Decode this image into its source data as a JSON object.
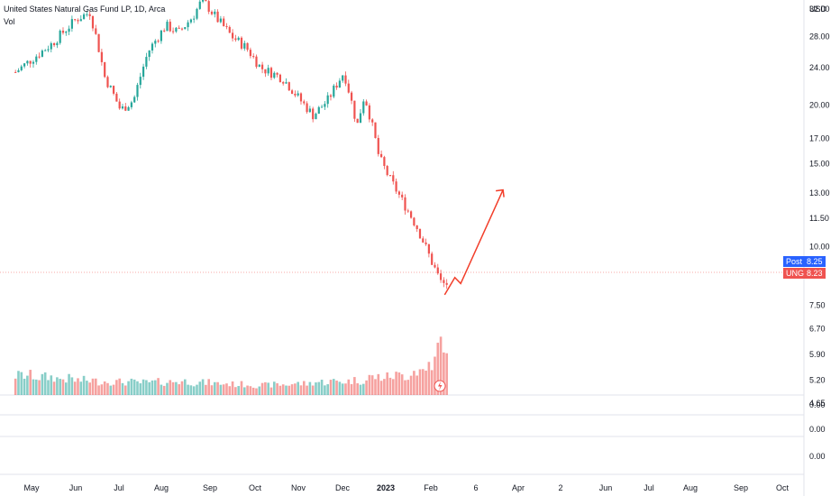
{
  "header": {
    "title": "United States Natural Gas Fund LP, 1D, Arca",
    "volume_label": "Vol"
  },
  "colors": {
    "up": "#26a69a",
    "down": "#ef5350",
    "arrow": "#f23e2a",
    "post_badge": "#2962ff",
    "ung_badge": "#ef5350",
    "gridline": "#e0e3eb",
    "text": "#131722"
  },
  "chart_data": {
    "type": "candlestick",
    "title": "United States Natural Gas Fund LP, 1D, Arca",
    "price_axis": {
      "currency": "USD",
      "scale": "log",
      "ticks": [
        "32.00",
        "28.00",
        "24.00",
        "20.00",
        "17.00",
        "15.00",
        "13.00",
        "11.50",
        "10.00",
        "8.25",
        "8.23",
        "7.50",
        "6.70",
        "5.90",
        "5.20",
        "4.65"
      ],
      "range": [
        4.3,
        36
      ]
    },
    "pane_axis_ticks": [
      "0.00",
      "0.00",
      "0.00"
    ],
    "time_axis": {
      "labels": [
        {
          "label": "May",
          "bold": false
        },
        {
          "label": "Jun",
          "bold": false
        },
        {
          "label": "Jul",
          "bold": false
        },
        {
          "label": "Aug",
          "bold": false
        },
        {
          "label": "Sep",
          "bold": false
        },
        {
          "label": "Oct",
          "bold": false
        },
        {
          "label": "Nov",
          "bold": false
        },
        {
          "label": "Dec",
          "bold": false
        },
        {
          "label": "2023",
          "bold": true
        },
        {
          "label": "Feb",
          "bold": false
        },
        {
          "label": "6",
          "bold": false
        },
        {
          "label": "Apr",
          "bold": false
        },
        {
          "label": "2",
          "bold": false
        },
        {
          "label": "Jun",
          "bold": false
        },
        {
          "label": "Jul",
          "bold": false
        },
        {
          "label": "Aug",
          "bold": false
        },
        {
          "label": "Sep",
          "bold": false
        },
        {
          "label": "Oct",
          "bold": false
        }
      ]
    },
    "series": [
      {
        "name": "UNG",
        "closes_monthly_approx": [
          {
            "date": "2022-04-20",
            "close": 23.5
          },
          {
            "date": "2022-05-01",
            "close": 25.0
          },
          {
            "date": "2022-05-15",
            "close": 27.0
          },
          {
            "date": "2022-06-01",
            "close": 30.5
          },
          {
            "date": "2022-06-10",
            "close": 31.5
          },
          {
            "date": "2022-06-20",
            "close": 23.0
          },
          {
            "date": "2022-07-01",
            "close": 19.5
          },
          {
            "date": "2022-07-10",
            "close": 20.5
          },
          {
            "date": "2022-07-20",
            "close": 26.0
          },
          {
            "date": "2022-08-01",
            "close": 29.5
          },
          {
            "date": "2022-08-10",
            "close": 28.5
          },
          {
            "date": "2022-08-20",
            "close": 31.0
          },
          {
            "date": "2022-08-26",
            "close": 33.5
          },
          {
            "date": "2022-09-05",
            "close": 30.5
          },
          {
            "date": "2022-09-15",
            "close": 28.0
          },
          {
            "date": "2022-09-25",
            "close": 26.5
          },
          {
            "date": "2022-10-05",
            "close": 24.0
          },
          {
            "date": "2022-10-20",
            "close": 22.8
          },
          {
            "date": "2022-11-01",
            "close": 20.5
          },
          {
            "date": "2022-11-10",
            "close": 19.0
          },
          {
            "date": "2022-11-20",
            "close": 20.5
          },
          {
            "date": "2022-12-01",
            "close": 23.5
          },
          {
            "date": "2022-12-10",
            "close": 18.0
          },
          {
            "date": "2022-12-15",
            "close": 21.0
          },
          {
            "date": "2022-12-25",
            "close": 15.5
          },
          {
            "date": "2023-01-01",
            "close": 14.0
          },
          {
            "date": "2023-01-10",
            "close": 12.5
          },
          {
            "date": "2023-01-20",
            "close": 11.0
          },
          {
            "date": "2023-01-30",
            "close": 9.3
          },
          {
            "date": "2023-02-06",
            "close": 8.3
          },
          {
            "date": "2023-02-10",
            "close": 8.23
          }
        ]
      }
    ],
    "volume": {
      "name": "Vol",
      "note": "relative volume bars; spike near Feb 2023",
      "relative_values": [
        0.6,
        0.55,
        0.5,
        0.45,
        0.42,
        0.4,
        0.38,
        0.4,
        0.42,
        0.38,
        0.35,
        0.33,
        0.3,
        0.32,
        0.35,
        0.4,
        0.42,
        0.45,
        0.55,
        0.6,
        0.75,
        1.0
      ]
    },
    "annotations": [
      {
        "type": "forecast-arrow",
        "from": {
          "date": "2023-02-08",
          "price": 7.9
        },
        "via": [
          {
            "date": "2023-02-15",
            "price": 8.6
          },
          {
            "date": "2023-02-19",
            "price": 8.35
          }
        ],
        "to": {
          "date": "2023-03-20",
          "price": 13.2
        }
      }
    ],
    "last_price_badges": [
      {
        "label": "Post",
        "value": "8.25"
      },
      {
        "label": "UNG",
        "value": "8.23"
      }
    ],
    "grid": false
  }
}
